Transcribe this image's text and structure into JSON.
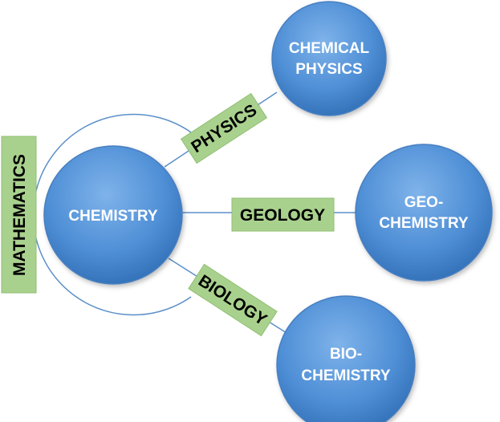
{
  "center": {
    "label": "CHEMISTRY"
  },
  "outer_circles": {
    "chemical_physics": {
      "line1": "CHEMICAL",
      "line2": "PHYSICS"
    },
    "geochemistry": {
      "line1": "GEO-",
      "line2": "CHEMISTRY"
    },
    "biochemistry": {
      "line1": "BIO-",
      "line2": "CHEMISTRY"
    }
  },
  "connectors": {
    "physics": "PHYSICS",
    "geology": "GEOLOGY",
    "biology": "BIOLOGY"
  },
  "side_box": {
    "label": "MATHEMATICS"
  },
  "colors": {
    "circle_light": "#6aa4e2",
    "circle_dark": "#2f6db4",
    "circle_stroke": "#4a7fc0",
    "box_fill": "#a9d18e",
    "line": "#5b8fc8"
  }
}
